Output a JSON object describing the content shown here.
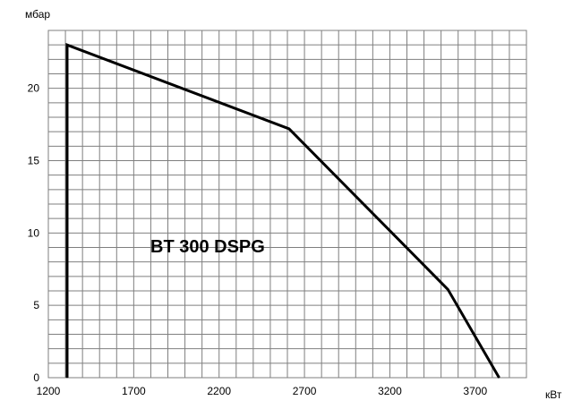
{
  "chart_data": {
    "type": "line",
    "ylabel": "мбар",
    "xlabel": "кВт",
    "annotation": "BT 300 DSPG",
    "xlim": [
      1200,
      4000
    ],
    "ylim": [
      0,
      24
    ],
    "x_ticks": [
      1200,
      1700,
      2200,
      2700,
      3200,
      3700
    ],
    "y_ticks": [
      0,
      5,
      10,
      15,
      20
    ],
    "grid": true,
    "series": [
      {
        "x": [
          1310,
          1310,
          2610,
          3540,
          3840
        ],
        "y": [
          0,
          23,
          17.2,
          6.1,
          0
        ]
      }
    ]
  }
}
